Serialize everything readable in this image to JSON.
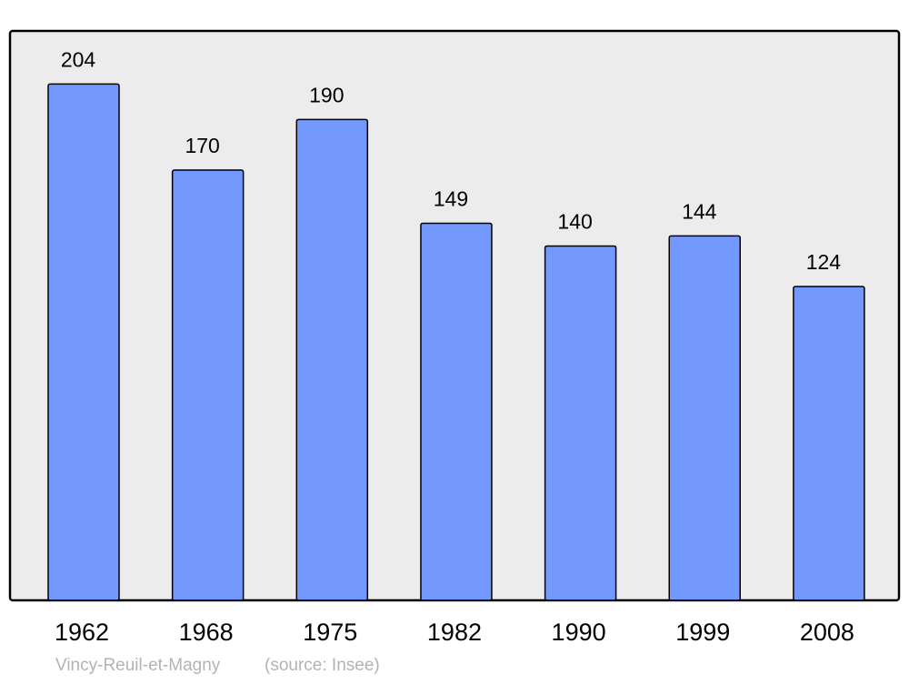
{
  "chart_data": {
    "type": "bar",
    "categories": [
      "1962",
      "1968",
      "1975",
      "1982",
      "1990",
      "1999",
      "2008"
    ],
    "values": [
      204,
      170,
      190,
      149,
      140,
      144,
      124
    ],
    "title": "",
    "xlabel": "",
    "ylabel": "",
    "ylim": [
      0,
      225
    ],
    "grid": false,
    "legend": "none",
    "data_labels": true,
    "colors": {
      "bar": "#7399ff",
      "bar_stroke": "#000000",
      "plot_background": "#ececec",
      "footer_text": "#b3b3b3"
    }
  },
  "footer": {
    "place": "Vincy-Reuil-et-Magny",
    "source": "(source: Insee)"
  }
}
